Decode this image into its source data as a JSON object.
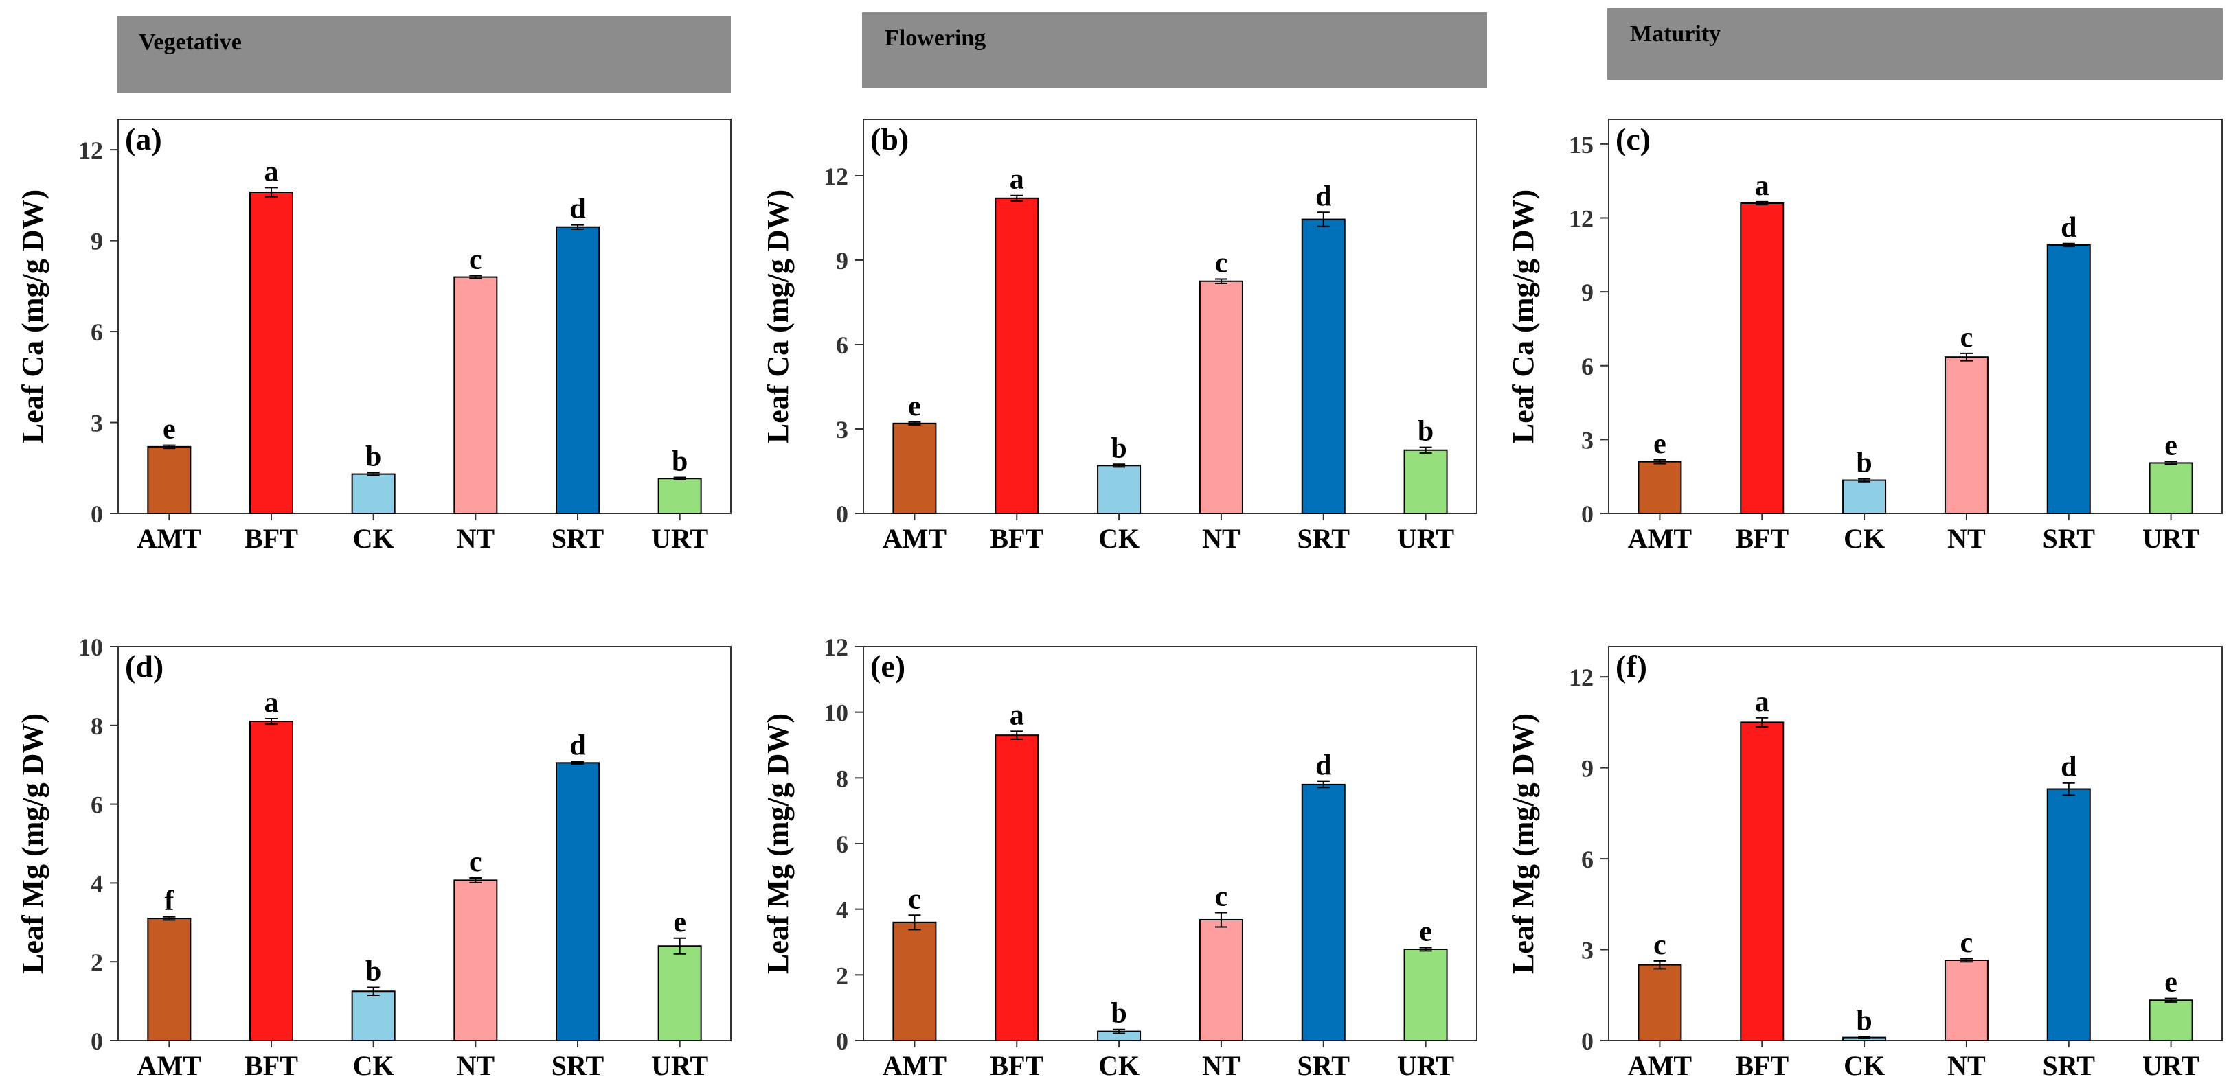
{
  "colors": {
    "AMT": "#c55a22",
    "BFT": "#ff1a1a",
    "CK": "#8ecfe6",
    "NT": "#ff9e9e",
    "SRT": "#0070b8",
    "URT": "#95e07d",
    "header_bg": "#8c8c8c"
  },
  "stages": [
    "Vegetative",
    "Flowering",
    "Maturity"
  ],
  "chart_data": [
    {
      "type": "bar",
      "panel": "(a)",
      "stage": "Vegetative",
      "ylabel": "Leaf Ca (mg/g DW)",
      "categories": [
        "AMT",
        "BFT",
        "CK",
        "NT",
        "SRT",
        "URT"
      ],
      "values": [
        2.2,
        10.6,
        1.3,
        7.8,
        9.45,
        1.15
      ],
      "errors": [
        0.05,
        0.15,
        0.05,
        0.05,
        0.07,
        0.04
      ],
      "letters": [
        "e",
        "a",
        "b",
        "c",
        "d",
        "b"
      ],
      "ylim": [
        0,
        13
      ],
      "yticks": [
        "0",
        "3",
        "6",
        "9",
        "12"
      ]
    },
    {
      "type": "bar",
      "panel": "(b)",
      "stage": "Flowering",
      "ylabel": "Leaf Ca (mg/g DW)",
      "categories": [
        "AMT",
        "BFT",
        "CK",
        "NT",
        "SRT",
        "URT"
      ],
      "values": [
        3.2,
        11.2,
        1.7,
        8.25,
        10.45,
        2.25
      ],
      "errors": [
        0.05,
        0.1,
        0.05,
        0.08,
        0.25,
        0.1
      ],
      "letters": [
        "e",
        "a",
        "b",
        "c",
        "d",
        "b"
      ],
      "ylim": [
        0,
        14
      ],
      "yticks": [
        "0",
        "3",
        "6",
        "9",
        "12"
      ]
    },
    {
      "type": "bar",
      "panel": "(c)",
      "stage": "Maturity",
      "ylabel": "Leaf Ca (mg/g DW)",
      "categories": [
        "AMT",
        "BFT",
        "CK",
        "NT",
        "SRT",
        "URT"
      ],
      "values": [
        2.1,
        12.6,
        1.35,
        6.35,
        10.9,
        2.05
      ],
      "errors": [
        0.08,
        0.06,
        0.06,
        0.15,
        0.06,
        0.06
      ],
      "letters": [
        "e",
        "a",
        "b",
        "c",
        "d",
        "e"
      ],
      "ylim": [
        0,
        16
      ],
      "yticks": [
        "0",
        "3",
        "6",
        "9",
        "12",
        "15"
      ]
    },
    {
      "type": "bar",
      "panel": "(d)",
      "stage": "Vegetative",
      "ylabel": "Leaf Mg (mg/g DW)",
      "categories": [
        "AMT",
        "BFT",
        "CK",
        "NT",
        "SRT",
        "URT"
      ],
      "values": [
        3.1,
        8.1,
        1.25,
        4.07,
        7.05,
        2.4
      ],
      "errors": [
        0.04,
        0.07,
        0.1,
        0.06,
        0.03,
        0.2
      ],
      "letters": [
        "f",
        "a",
        "b",
        "c",
        "d",
        "e"
      ],
      "ylim": [
        0,
        10
      ],
      "yticks": [
        "0",
        "2",
        "4",
        "6",
        "8",
        "10"
      ]
    },
    {
      "type": "bar",
      "panel": "(e)",
      "stage": "Flowering",
      "ylabel": "Leaf Mg (mg/g DW)",
      "categories": [
        "AMT",
        "BFT",
        "CK",
        "NT",
        "SRT",
        "URT"
      ],
      "values": [
        3.6,
        9.3,
        0.28,
        3.68,
        7.8,
        2.78
      ],
      "errors": [
        0.22,
        0.12,
        0.06,
        0.22,
        0.09,
        0.05
      ],
      "letters": [
        "c",
        "a",
        "b",
        "c",
        "d",
        "e"
      ],
      "ylim": [
        0,
        12
      ],
      "yticks": [
        "0",
        "2",
        "4",
        "6",
        "8",
        "10",
        "12"
      ]
    },
    {
      "type": "bar",
      "panel": "(f)",
      "stage": "Maturity",
      "ylabel": "Leaf Mg (mg/g DW)",
      "categories": [
        "AMT",
        "BFT",
        "CK",
        "NT",
        "SRT",
        "URT"
      ],
      "values": [
        2.5,
        10.5,
        0.1,
        2.65,
        8.3,
        1.33
      ],
      "errors": [
        0.13,
        0.15,
        0.03,
        0.05,
        0.2,
        0.06
      ],
      "letters": [
        "c",
        "a",
        "b",
        "c",
        "d",
        "e"
      ],
      "ylim": [
        0,
        13
      ],
      "yticks": [
        "0",
        "3",
        "6",
        "9",
        "12"
      ]
    }
  ]
}
